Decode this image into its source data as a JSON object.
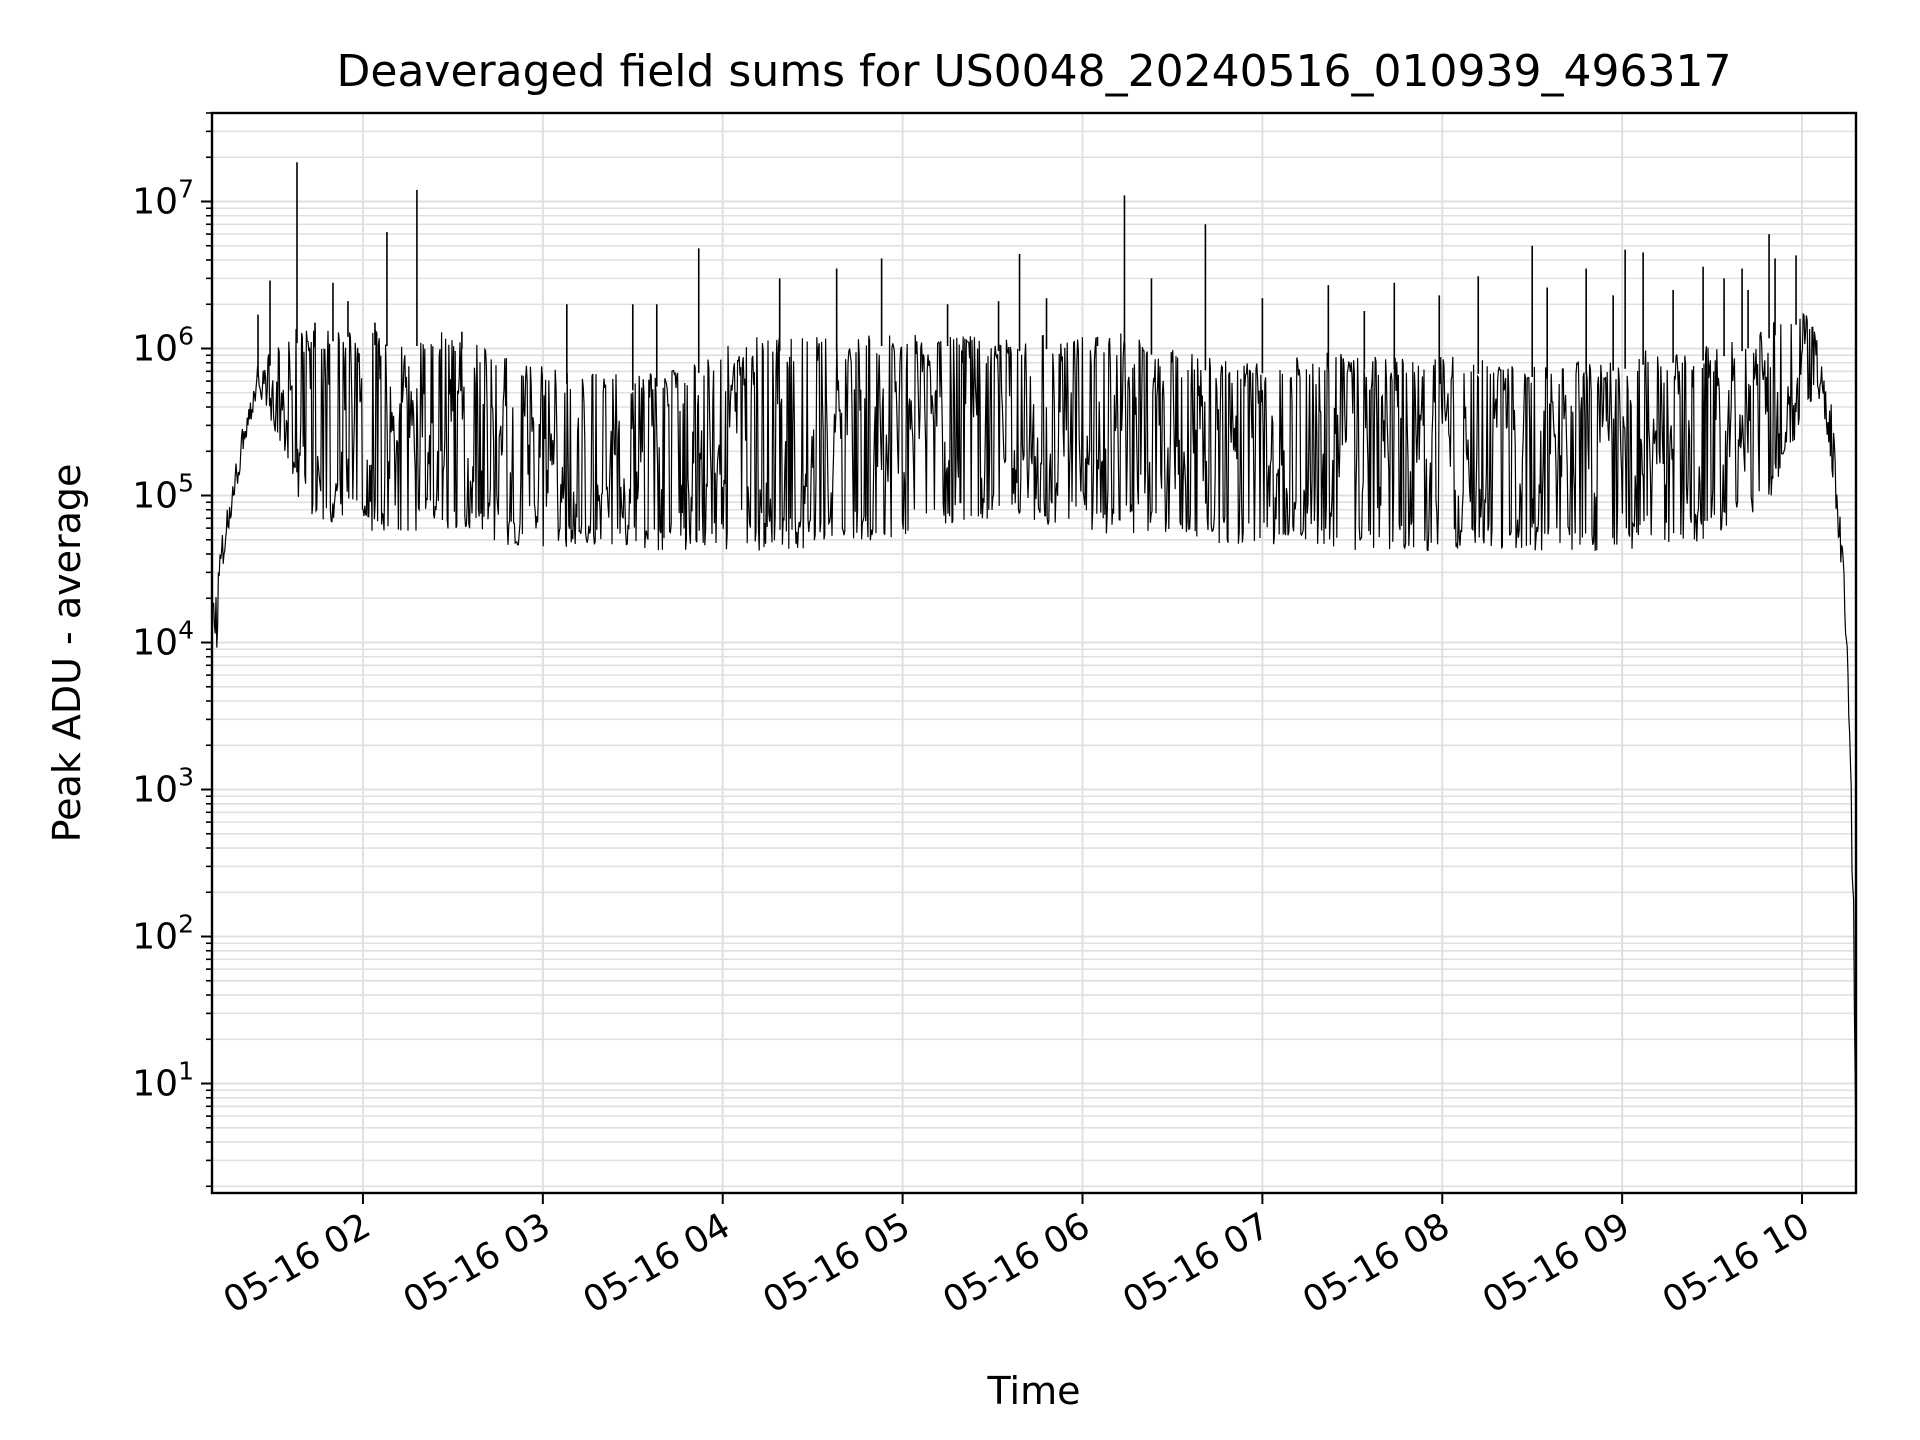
{
  "chart_data": {
    "type": "line",
    "title": "Deaveraged field sums for US0048_20240516_010939_496317",
    "xlabel": "Time",
    "ylabel": "Peak ADU - average",
    "yscale": "log",
    "ylim": [
      1.8,
      40000000
    ],
    "xlim": [
      "2024-05-16 01:09:39",
      "2024-05-16 10:18:00"
    ],
    "grid": "major and minor",
    "line_color": "#000000",
    "grid_color": "#e0e0e0",
    "x_ticks": [
      {
        "value": "2024-05-16 02:00",
        "label": "05-16 02"
      },
      {
        "value": "2024-05-16 03:00",
        "label": "05-16 03"
      },
      {
        "value": "2024-05-16 04:00",
        "label": "05-16 04"
      },
      {
        "value": "2024-05-16 05:00",
        "label": "05-16 05"
      },
      {
        "value": "2024-05-16 06:00",
        "label": "05-16 06"
      },
      {
        "value": "2024-05-16 07:00",
        "label": "05-16 07"
      },
      {
        "value": "2024-05-16 08:00",
        "label": "05-16 08"
      },
      {
        "value": "2024-05-16 09:00",
        "label": "05-16 09"
      },
      {
        "value": "2024-05-16 10:00",
        "label": "05-16 10"
      }
    ],
    "y_ticks": [
      {
        "value": 10,
        "base": "10",
        "exp": "1"
      },
      {
        "value": 100,
        "base": "10",
        "exp": "2"
      },
      {
        "value": 1000,
        "base": "10",
        "exp": "3"
      },
      {
        "value": 10000,
        "base": "10",
        "exp": "4"
      },
      {
        "value": 100000,
        "base": "10",
        "exp": "5"
      },
      {
        "value": 1000000,
        "base": "10",
        "exp": "6"
      },
      {
        "value": 10000000,
        "base": "10",
        "exp": "7"
      }
    ],
    "series": [
      {
        "style": "envelope",
        "x": [
          "2024-05-16 01:09:39",
          "2024-05-16 01:11",
          "2024-05-16 01:13",
          "2024-05-16 01:16",
          "2024-05-16 01:20",
          "2024-05-16 01:25",
          "2024-05-16 01:30",
          "2024-05-16 01:35",
          "2024-05-16 01:40",
          "2024-05-16 01:45",
          "2024-05-16 01:50",
          "2024-05-16 01:55",
          "2024-05-16 02:00",
          "2024-05-16 02:05",
          "2024-05-16 02:10",
          "2024-05-16 02:15",
          "2024-05-16 02:20",
          "2024-05-16 02:25",
          "2024-05-16 02:30",
          "2024-05-16 02:35",
          "2024-05-16 02:40",
          "2024-05-16 02:45",
          "2024-05-16 02:50",
          "2024-05-16 02:55",
          "2024-05-16 03:00",
          "2024-05-16 03:10",
          "2024-05-16 03:20",
          "2024-05-16 03:30",
          "2024-05-16 03:40",
          "2024-05-16 03:50",
          "2024-05-16 04:00",
          "2024-05-16 04:10",
          "2024-05-16 04:20",
          "2024-05-16 04:30",
          "2024-05-16 04:40",
          "2024-05-16 04:50",
          "2024-05-16 05:00",
          "2024-05-16 05:10",
          "2024-05-16 05:20",
          "2024-05-16 05:30",
          "2024-05-16 05:40",
          "2024-05-16 05:50",
          "2024-05-16 06:00",
          "2024-05-16 06:10",
          "2024-05-16 06:20",
          "2024-05-16 06:30",
          "2024-05-16 06:40",
          "2024-05-16 06:50",
          "2024-05-16 07:00",
          "2024-05-16 07:10",
          "2024-05-16 07:20",
          "2024-05-16 07:30",
          "2024-05-16 07:40",
          "2024-05-16 07:50",
          "2024-05-16 08:00",
          "2024-05-16 08:10",
          "2024-05-16 08:20",
          "2024-05-16 08:30",
          "2024-05-16 08:40",
          "2024-05-16 08:50",
          "2024-05-16 09:00",
          "2024-05-16 09:10",
          "2024-05-16 09:20",
          "2024-05-16 09:30",
          "2024-05-16 09:40",
          "2024-05-16 09:50",
          "2024-05-16 10:00",
          "2024-05-16 10:04",
          "2024-05-16 10:07",
          "2024-05-16 10:10",
          "2024-05-16 10:12",
          "2024-05-16 10:14",
          "2024-05-16 10:16",
          "2024-05-16 10:17",
          "2024-05-16 10:18"
        ],
        "y_upper": [
          24000,
          22000,
          60000,
          110000,
          300000,
          800000,
          1000000,
          1300000,
          1400000,
          1400000,
          1400000,
          1500000,
          1400000,
          1300000,
          1300000,
          1300000,
          1300000,
          1300000,
          1300000,
          1200000,
          1000000,
          900000,
          850000,
          800000,
          800000,
          700000,
          700000,
          650000,
          700000,
          800000,
          1100000,
          1200000,
          1200000,
          1200000,
          1200000,
          1300000,
          1300000,
          1300000,
          1300000,
          1200000,
          1200000,
          1250000,
          1300000,
          1300000,
          1200000,
          1000000,
          900000,
          800000,
          850000,
          900000,
          950000,
          900000,
          900000,
          900000,
          900000,
          850000,
          800000,
          800000,
          800000,
          850000,
          900000,
          1000000,
          1000000,
          1050000,
          1200000,
          1500000,
          1900000,
          1400000,
          800000,
          400000,
          100000,
          40000,
          3000,
          300,
          4
        ],
        "y_lower": [
          10000,
          7000,
          30000,
          60000,
          200000,
          500000,
          300000,
          150000,
          80000,
          70000,
          65000,
          60000,
          60000,
          55000,
          55000,
          55000,
          60000,
          60000,
          55000,
          55000,
          50000,
          48000,
          45000,
          45000,
          44000,
          42000,
          40000,
          40000,
          40000,
          40000,
          42000,
          42000,
          42000,
          44000,
          45000,
          46000,
          50000,
          55000,
          60000,
          70000,
          70000,
          60000,
          55000,
          55000,
          55000,
          50000,
          48000,
          46000,
          45000,
          44000,
          42000,
          42000,
          42000,
          42000,
          42000,
          42000,
          42000,
          42000,
          42000,
          42000,
          42000,
          42000,
          45000,
          50000,
          60000,
          100000,
          300000,
          500000,
          400000,
          150000,
          50000,
          20000,
          1000,
          100,
          4
        ]
      },
      {
        "style": "spikes",
        "x": [
          "2024-05-16 01:25",
          "2024-05-16 01:29",
          "2024-05-16 01:38",
          "2024-05-16 01:44",
          "2024-05-16 01:50",
          "2024-05-16 01:55",
          "2024-05-16 02:04",
          "2024-05-16 02:08",
          "2024-05-16 02:18",
          "2024-05-16 02:33",
          "2024-05-16 03:08",
          "2024-05-16 03:30",
          "2024-05-16 03:38",
          "2024-05-16 03:52",
          "2024-05-16 04:19",
          "2024-05-16 04:38",
          "2024-05-16 04:53",
          "2024-05-16 05:15",
          "2024-05-16 05:32",
          "2024-05-16 05:39",
          "2024-05-16 05:48",
          "2024-05-16 06:05",
          "2024-05-16 06:14",
          "2024-05-16 06:23",
          "2024-05-16 06:41",
          "2024-05-16 07:00",
          "2024-05-16 07:22",
          "2024-05-16 07:34",
          "2024-05-16 07:44",
          "2024-05-16 07:59",
          "2024-05-16 08:12",
          "2024-05-16 08:30",
          "2024-05-16 08:35",
          "2024-05-16 08:48",
          "2024-05-16 08:57",
          "2024-05-16 09:01",
          "2024-05-16 09:07",
          "2024-05-16 09:17",
          "2024-05-16 09:27",
          "2024-05-16 09:34",
          "2024-05-16 09:40",
          "2024-05-16 09:42",
          "2024-05-16 09:49",
          "2024-05-16 09:51",
          "2024-05-16 09:58"
        ],
        "y": [
          1700000,
          2900000,
          18500000,
          1500000,
          2800000,
          2100000,
          1500000,
          6200000,
          12000000,
          1300000,
          2000000,
          2000000,
          2000000,
          4800000,
          3000000,
          3500000,
          4100000,
          2000000,
          2100000,
          4400000,
          2200000,
          1200000,
          11000000,
          3000000,
          7000000,
          2200000,
          2700000,
          1800000,
          2800000,
          2300000,
          3100000,
          5000000,
          2600000,
          3500000,
          2300000,
          4700000,
          4500000,
          2500000,
          3600000,
          3000000,
          3500000,
          2500000,
          6000000,
          4100000,
          4300000
        ]
      }
    ]
  }
}
